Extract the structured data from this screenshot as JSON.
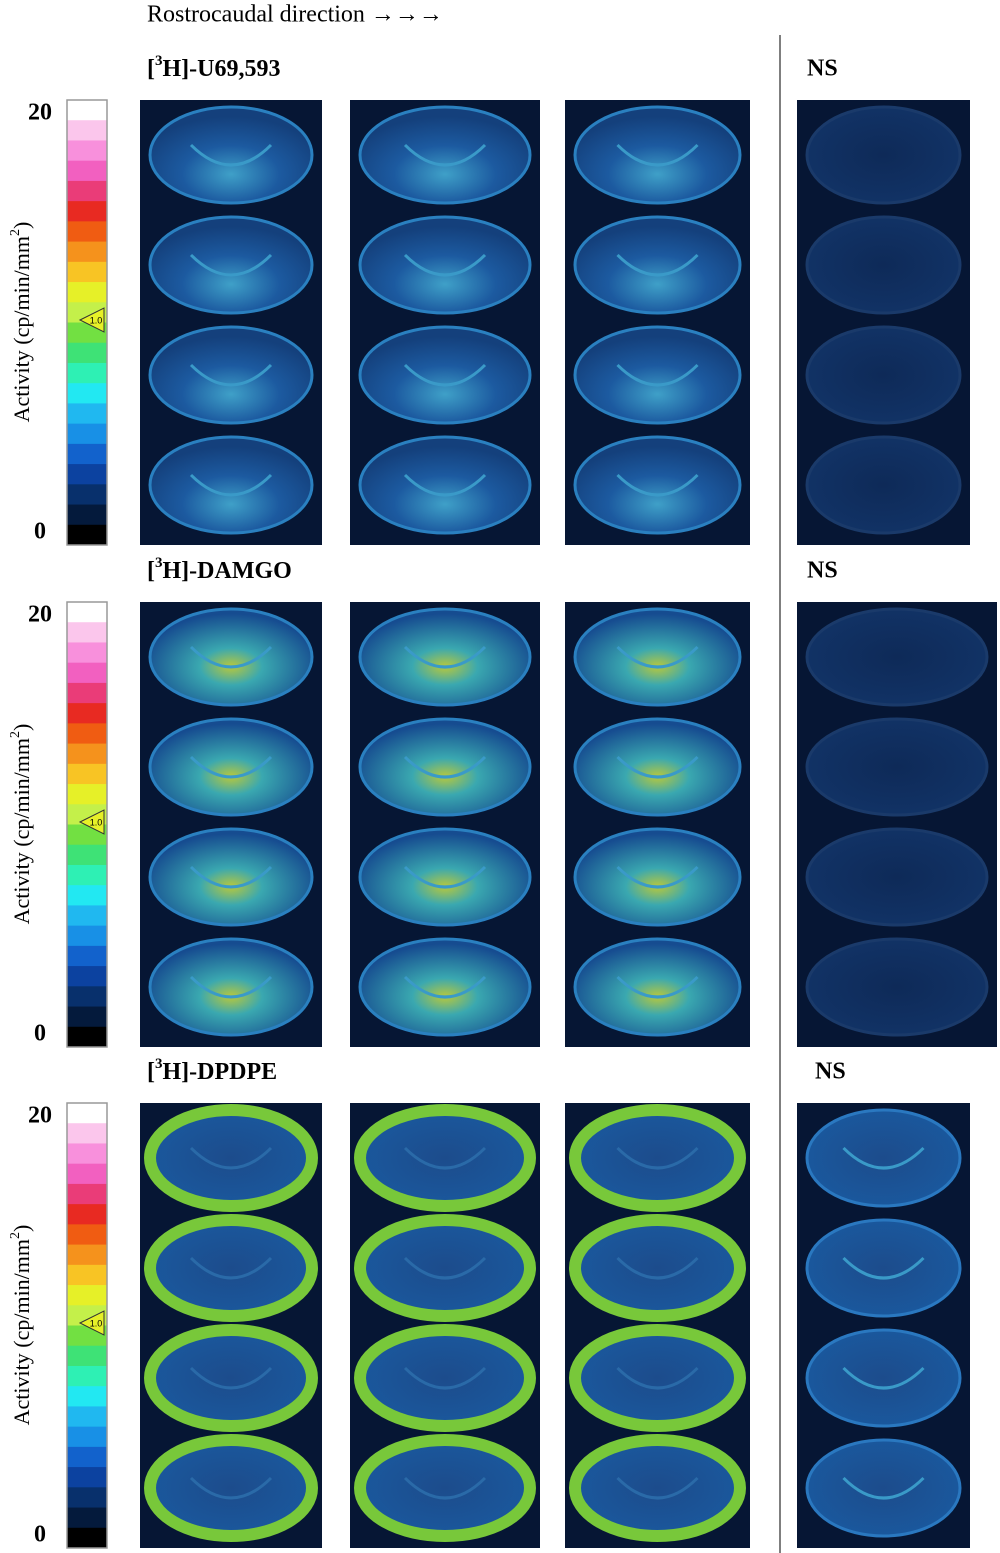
{
  "header": {
    "direction": "Rostrocaudal direction →→→"
  },
  "colorbar_colors": [
    "#ffffff",
    "#fbc6ec",
    "#f890dc",
    "#f260c0",
    "#ea3c78",
    "#e82a22",
    "#f05c12",
    "#f5921c",
    "#f8c424",
    "#e6f028",
    "#c4f04a",
    "#72e042",
    "#3ee276",
    "#2ef0b4",
    "#22e8f2",
    "#20b8f0",
    "#1890e6",
    "#1262cc",
    "#0c42a0",
    "#08306c",
    "#041a3c",
    "#000000"
  ],
  "panels": [
    {
      "title": {
        "open": "[",
        "sup": "3",
        "rest": "H]-U69,593"
      },
      "control": "NS",
      "scale_max": 20,
      "scale_min": 0,
      "marker": "1.0",
      "axis_label": {
        "text": "Activity (cp/min/mm",
        "sup": "2",
        "close": ")"
      }
    },
    {
      "title": {
        "open": "[",
        "sup": "3",
        "rest": "H]-DAMGO"
      },
      "control": "NS",
      "scale_max": 20,
      "scale_min": 0,
      "marker": "1.0",
      "axis_label": {
        "text": "Activity (cp/min/mm",
        "sup": "2",
        "close": ")"
      }
    },
    {
      "title": {
        "open": "[",
        "sup": "3",
        "rest": "H]-DPDPE"
      },
      "control": "NS",
      "scale_max": 20,
      "scale_min": 0,
      "marker": "1.0",
      "axis_label": {
        "text": "Activity (cp/min/mm",
        "sup": "2",
        "close": ")"
      }
    }
  ]
}
